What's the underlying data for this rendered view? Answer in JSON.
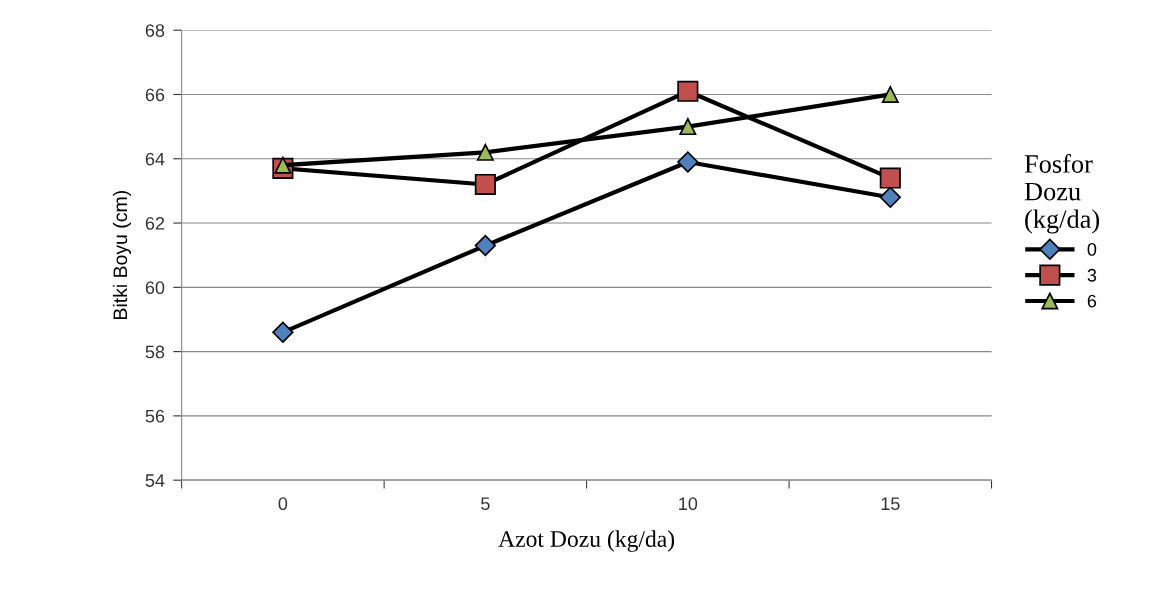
{
  "chart_data": {
    "type": "line",
    "xlabel": "Azot Dozu (kg/da)",
    "ylabel": "Bitki Boyu (cm)",
    "legend_title": "Fosfor\nDozu\n(kg/da)",
    "categories": [
      "0",
      "5",
      "10",
      "15"
    ],
    "series": [
      {
        "name": "0",
        "color": "#4f81bd",
        "marker": "diamond",
        "values": [
          58.6,
          61.3,
          63.9,
          62.8
        ]
      },
      {
        "name": "3",
        "color": "#c0504d",
        "marker": "square",
        "values": [
          63.7,
          63.2,
          66.1,
          63.4
        ]
      },
      {
        "name": "6",
        "color": "#9bbb59",
        "marker": "triangle",
        "values": [
          63.8,
          64.2,
          65.0,
          66.0
        ]
      }
    ],
    "ylim": [
      54,
      68
    ],
    "yticks": [
      54,
      56,
      58,
      60,
      62,
      64,
      66,
      68
    ],
    "grid": "y",
    "legend": "right",
    "line_style": "solid"
  }
}
